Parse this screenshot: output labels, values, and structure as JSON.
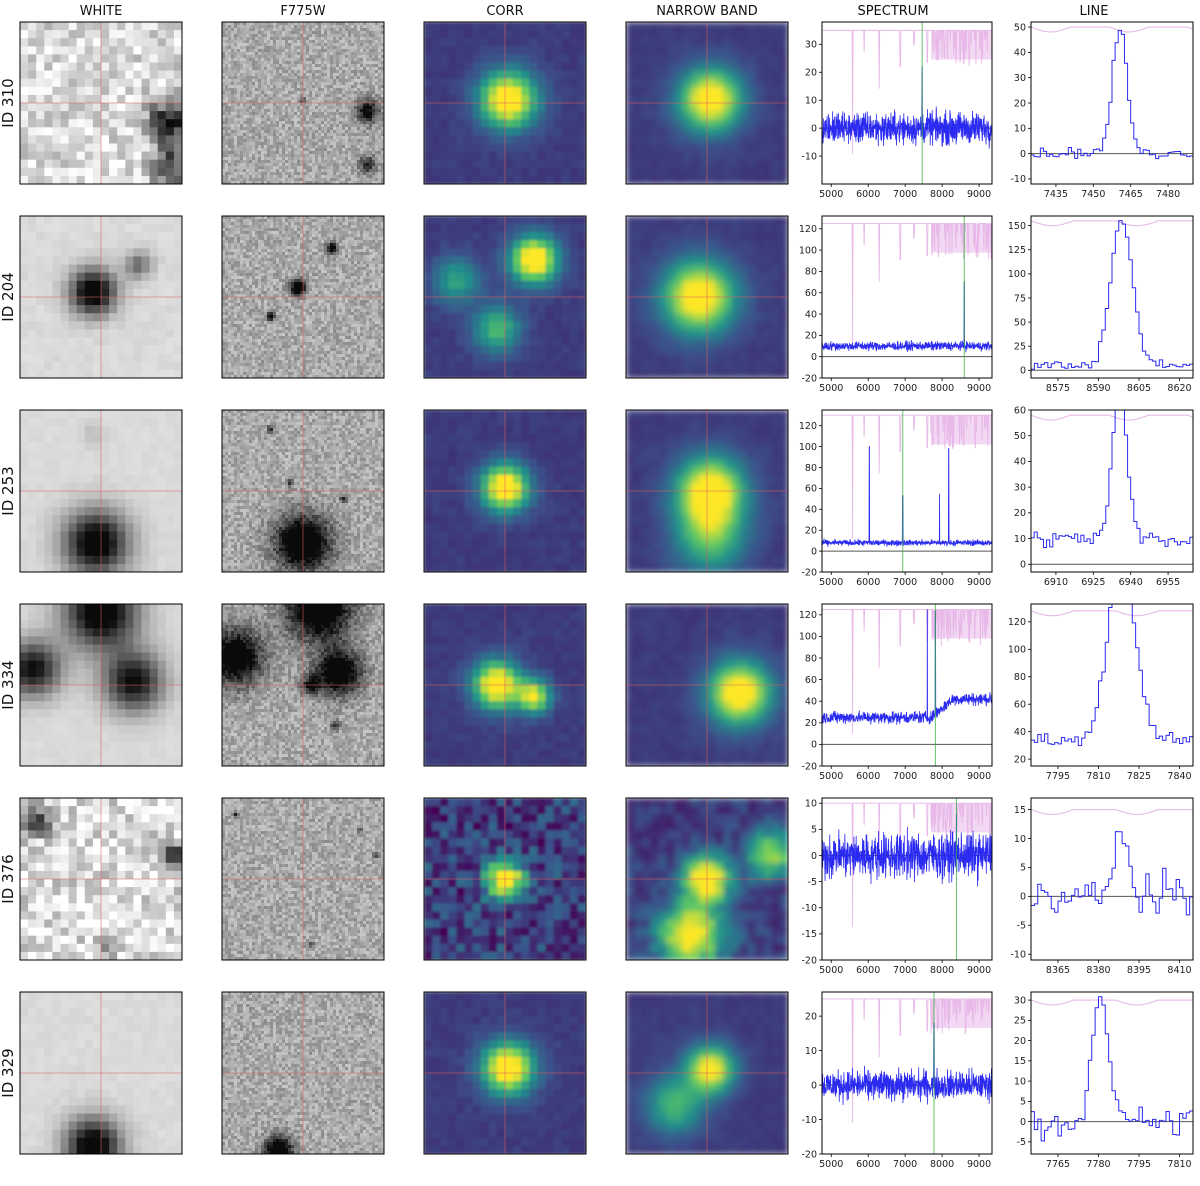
{
  "figure": {
    "columns": [
      "WHITE",
      "F775W",
      "CORR",
      "NARROW BAND",
      "SPECTRUM",
      "LINE"
    ]
  },
  "colors": {
    "spectrum": "#2a2af0",
    "sky": "#e8b8e8",
    "line_marker": "#3cb043",
    "zero_line": "#555555",
    "crosshair": "#e06060"
  },
  "chart_data": [
    {
      "id_label": "ID 310",
      "white": {
        "type": "heatmap",
        "blobs": [
          [
            0.92,
            0.62,
            0.09,
            0.85
          ],
          [
            0.92,
            0.9,
            0.08,
            0.7
          ]
        ],
        "noise": 0.35
      },
      "f775w": {
        "type": "heatmap",
        "blobs": [
          [
            0.9,
            0.55,
            0.05,
            0.7
          ],
          [
            0.9,
            0.88,
            0.04,
            0.5
          ],
          [
            0.5,
            0.48,
            0.015,
            0.4
          ]
        ],
        "noise": 0.25
      },
      "corr": {
        "type": "heatmap",
        "blobs": [
          [
            0.52,
            0.48,
            0.12,
            1.0
          ]
        ]
      },
      "narrow": {
        "type": "heatmap",
        "blobs": [
          [
            0.52,
            0.48,
            0.13,
            1.0
          ]
        ]
      },
      "spectrum": {
        "type": "line",
        "x_ticks": [
          "5000",
          "6000",
          "7000",
          "8000",
          "9000"
        ],
        "y_ticks": [
          "-10",
          "0",
          "10",
          "20",
          "30"
        ],
        "ylim": [
          -20,
          38
        ],
        "continuum": 0,
        "noise": 4,
        "line_x": 7460,
        "line_peak": 22,
        "sky_level": 35
      },
      "line": {
        "type": "line",
        "x_ticks": [
          "7435",
          "7450",
          "7465",
          "7480"
        ],
        "y_ticks": [
          "-10",
          "0",
          "10",
          "20",
          "30",
          "40",
          "50"
        ],
        "xlim": [
          7425,
          7490
        ],
        "ylim": [
          -12,
          52
        ],
        "center": 7460,
        "peak": 49,
        "width": 3,
        "base": 0,
        "noise": 2,
        "sky_level": 50
      }
    },
    {
      "id_label": "ID 204",
      "white": {
        "type": "heatmap",
        "blobs": [
          [
            0.45,
            0.47,
            0.1,
            1.0
          ],
          [
            0.73,
            0.3,
            0.06,
            0.45
          ]
        ],
        "noise": 0.05
      },
      "f775w": {
        "type": "heatmap",
        "blobs": [
          [
            0.47,
            0.44,
            0.035,
            0.95
          ],
          [
            0.68,
            0.2,
            0.025,
            0.8
          ],
          [
            0.3,
            0.62,
            0.02,
            0.7
          ]
        ],
        "noise": 0.25
      },
      "corr": {
        "type": "heatmap",
        "blobs": [
          [
            0.68,
            0.27,
            0.1,
            1.0
          ],
          [
            0.45,
            0.7,
            0.1,
            0.5
          ],
          [
            0.2,
            0.4,
            0.1,
            0.4
          ]
        ]
      },
      "narrow": {
        "type": "heatmap",
        "blobs": [
          [
            0.45,
            0.5,
            0.15,
            1.0
          ]
        ]
      },
      "spectrum": {
        "type": "line",
        "x_ticks": [
          "5000",
          "6000",
          "7000",
          "8000",
          "9000"
        ],
        "y_ticks": [
          "-20",
          "0",
          "20",
          "40",
          "60",
          "80",
          "100",
          "120"
        ],
        "ylim": [
          -20,
          132
        ],
        "continuum": 10,
        "noise": 3,
        "line_x": 8600,
        "line_peak": 60,
        "sky_level": 125
      },
      "line": {
        "type": "line",
        "x_ticks": [
          "8575",
          "8590",
          "8605",
          "8620"
        ],
        "y_ticks": [
          "0",
          "25",
          "50",
          "75",
          "100",
          "125",
          "150"
        ],
        "xlim": [
          8565,
          8625
        ],
        "ylim": [
          -8,
          160
        ],
        "center": 8598,
        "peak": 150,
        "width": 4,
        "base": 5,
        "noise": 4,
        "sky_level": 155
      }
    },
    {
      "id_label": "ID 253",
      "white": {
        "type": "heatmap",
        "blobs": [
          [
            0.47,
            0.82,
            0.14,
            1.0
          ],
          [
            0.45,
            0.15,
            0.05,
            0.12
          ]
        ],
        "noise": 0.03
      },
      "f775w": {
        "type": "heatmap",
        "blobs": [
          [
            0.5,
            0.82,
            0.12,
            1.0
          ],
          [
            0.3,
            0.12,
            0.015,
            0.6
          ],
          [
            0.42,
            0.45,
            0.015,
            0.5
          ],
          [
            0.75,
            0.55,
            0.015,
            0.5
          ]
        ],
        "noise": 0.25
      },
      "corr": {
        "type": "heatmap",
        "blobs": [
          [
            0.5,
            0.48,
            0.1,
            1.0
          ]
        ]
      },
      "narrow": {
        "type": "heatmap",
        "blobs": [
          [
            0.52,
            0.5,
            0.14,
            1.0
          ],
          [
            0.52,
            0.78,
            0.15,
            0.55
          ]
        ]
      },
      "spectrum": {
        "type": "line",
        "x_ticks": [
          "5000",
          "6000",
          "7000",
          "8000",
          "9000"
        ],
        "y_ticks": [
          "-20",
          "0",
          "20",
          "40",
          "60",
          "80",
          "100",
          "120"
        ],
        "ylim": [
          -20,
          135
        ],
        "continuum": 8,
        "noise": 2,
        "line_x": 6935,
        "line_peak": 45,
        "extra_lines": [
          [
            6030,
            100
          ],
          [
            7930,
            55
          ],
          [
            8180,
            98
          ]
        ],
        "sky_level": 130
      },
      "line": {
        "type": "line",
        "x_ticks": [
          "6910",
          "6925",
          "6940",
          "6955"
        ],
        "y_ticks": [
          "0",
          "10",
          "20",
          "30",
          "40",
          "50",
          "60"
        ],
        "xlim": [
          6900,
          6965
        ],
        "ylim": [
          -3,
          60
        ],
        "center": 6935,
        "peak": 57,
        "width": 3,
        "base": 10,
        "noise": 2.5,
        "sky_level": 58
      }
    },
    {
      "id_label": "ID 334",
      "white": {
        "type": "heatmap",
        "blobs": [
          [
            0.5,
            0.05,
            0.16,
            1.0
          ],
          [
            0.08,
            0.4,
            0.12,
            0.85
          ],
          [
            0.7,
            0.48,
            0.13,
            0.85
          ]
        ],
        "noise": 0.03
      },
      "f775w": {
        "type": "heatmap",
        "blobs": [
          [
            0.6,
            0.02,
            0.14,
            1.0
          ],
          [
            0.08,
            0.33,
            0.12,
            0.9
          ],
          [
            0.72,
            0.42,
            0.1,
            0.9
          ],
          [
            0.55,
            0.5,
            0.04,
            0.6
          ],
          [
            0.7,
            0.75,
            0.02,
            0.6
          ]
        ],
        "noise": 0.25
      },
      "corr": {
        "type": "heatmap",
        "blobs": [
          [
            0.45,
            0.5,
            0.1,
            1.0
          ],
          [
            0.68,
            0.57,
            0.07,
            0.8
          ]
        ]
      },
      "narrow": {
        "type": "heatmap",
        "blobs": [
          [
            0.7,
            0.55,
            0.13,
            1.0
          ]
        ]
      },
      "spectrum": {
        "type": "line",
        "x_ticks": [
          "5000",
          "6000",
          "7000",
          "8000",
          "9000"
        ],
        "y_ticks": [
          "-20",
          "0",
          "20",
          "40",
          "60",
          "80",
          "100",
          "120"
        ],
        "ylim": [
          -20,
          130
        ],
        "continuum": 25,
        "continuum_red": 42,
        "noise": 4,
        "line_x": 7818,
        "line_peak": 95,
        "extra_lines": [
          [
            7600,
            125
          ]
        ],
        "sky_level": 125
      },
      "line": {
        "type": "line",
        "x_ticks": [
          "7795",
          "7810",
          "7825",
          "7840"
        ],
        "y_ticks": [
          "20",
          "40",
          "60",
          "80",
          "100",
          "120"
        ],
        "xlim": [
          7785,
          7845
        ],
        "ylim": [
          15,
          133
        ],
        "center": 7818,
        "peak": 130,
        "width": 5,
        "base": 35,
        "noise": 5,
        "sky_level": 128
      }
    },
    {
      "id_label": "ID 376",
      "white": {
        "type": "heatmap",
        "blobs": [
          [
            0.1,
            0.15,
            0.06,
            0.7
          ],
          [
            0.95,
            0.35,
            0.05,
            0.6
          ],
          [
            0.55,
            0.9,
            0.05,
            0.4
          ]
        ],
        "noise": 0.4
      },
      "f775w": {
        "type": "heatmap",
        "blobs": [
          [
            0.08,
            0.1,
            0.012,
            0.5
          ],
          [
            0.95,
            0.35,
            0.012,
            0.5
          ],
          [
            0.85,
            0.2,
            0.012,
            0.4
          ],
          [
            0.55,
            0.9,
            0.012,
            0.4
          ]
        ],
        "noise": 0.25
      },
      "corr": {
        "type": "heatmap",
        "blobs": [
          [
            0.5,
            0.5,
            0.08,
            1.0
          ]
        ],
        "noise": 0.35
      },
      "narrow": {
        "type": "heatmap",
        "blobs": [
          [
            0.5,
            0.5,
            0.1,
            1.0
          ],
          [
            0.4,
            0.85,
            0.14,
            0.9
          ],
          [
            0.9,
            0.35,
            0.1,
            0.7
          ]
        ],
        "noise": 0.2
      },
      "spectrum": {
        "type": "line",
        "x_ticks": [
          "5000",
          "6000",
          "7000",
          "8000",
          "9000"
        ],
        "y_ticks": [
          "-20",
          "-15",
          "-10",
          "-5",
          "0",
          "5",
          "10"
        ],
        "ylim": [
          -20,
          11
        ],
        "continuum": 0,
        "noise": 3,
        "line_x": 8388,
        "line_peak": 8,
        "sky_level": 10
      },
      "line": {
        "type": "line",
        "x_ticks": [
          "8365",
          "8380",
          "8395",
          "8410"
        ],
        "y_ticks": [
          "-10",
          "-5",
          "0",
          "5",
          "10",
          "15"
        ],
        "xlim": [
          8355,
          8415
        ],
        "ylim": [
          -11,
          17
        ],
        "center": 8388,
        "peak": 14,
        "width": 2,
        "base": 0,
        "noise": 3,
        "sky_level": 15
      }
    },
    {
      "id_label": "ID 329",
      "white": {
        "type": "heatmap",
        "blobs": [
          [
            0.45,
            0.95,
            0.12,
            1.0
          ]
        ],
        "noise": 0.04
      },
      "f775w": {
        "type": "heatmap",
        "blobs": [
          [
            0.35,
            0.98,
            0.06,
            1.0
          ]
        ],
        "noise": 0.25
      },
      "corr": {
        "type": "heatmap",
        "blobs": [
          [
            0.52,
            0.47,
            0.11,
            1.0
          ]
        ]
      },
      "narrow": {
        "type": "heatmap",
        "blobs": [
          [
            0.52,
            0.48,
            0.1,
            0.9
          ],
          [
            0.3,
            0.7,
            0.12,
            0.5
          ]
        ]
      },
      "spectrum": {
        "type": "line",
        "x_ticks": [
          "5000",
          "6000",
          "7000",
          "8000",
          "9000"
        ],
        "y_ticks": [
          "-20",
          "-10",
          "0",
          "10",
          "20"
        ],
        "ylim": [
          -20,
          27
        ],
        "continuum": 0,
        "noise": 3,
        "line_x": 7780,
        "line_peak": 18,
        "sky_level": 25
      },
      "line": {
        "type": "line",
        "x_ticks": [
          "7765",
          "7780",
          "7795",
          "7810"
        ],
        "y_ticks": [
          "-5",
          "0",
          "5",
          "10",
          "15",
          "20",
          "25",
          "30"
        ],
        "xlim": [
          7755,
          7815
        ],
        "ylim": [
          -8,
          32
        ],
        "center": 7780,
        "peak": 30,
        "width": 3,
        "base": 0,
        "noise": 3,
        "sky_level": 30
      }
    }
  ]
}
